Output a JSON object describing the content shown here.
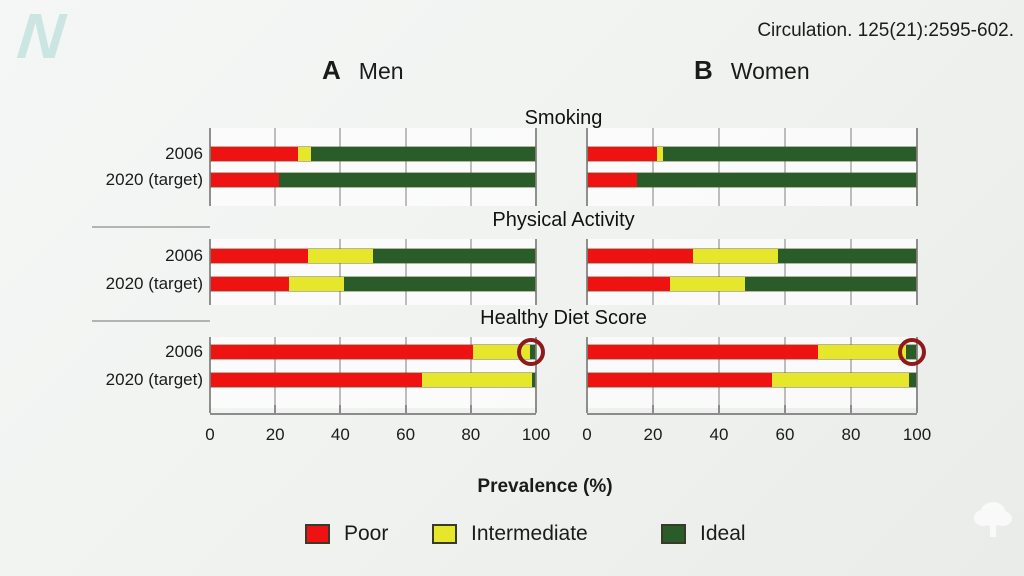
{
  "logo": {
    "letter": "N"
  },
  "citation": "Circulation. 125(21):2595-602.",
  "headers": {
    "a_letter": "A",
    "a_name": "Men",
    "b_letter": "B",
    "b_name": "Women"
  },
  "xlabel": "Prevalence (%)",
  "legend": {
    "items": [
      {
        "label": "Poor",
        "color": "#ee1212"
      },
      {
        "label": "Intermediate",
        "color": "#e6e72b"
      },
      {
        "label": "Ideal",
        "color": "#2a5c2a"
      }
    ]
  },
  "chart_data": {
    "type": "bar",
    "stacked": true,
    "orientation": "horizontal",
    "title": "",
    "xlabel": "Prevalence (%)",
    "xlim": [
      0,
      100
    ],
    "x_ticks": [
      0,
      20,
      40,
      60,
      80,
      100
    ],
    "panels": [
      {
        "key": "men",
        "label": "Men"
      },
      {
        "key": "women",
        "label": "Women"
      }
    ],
    "segments": [
      {
        "name": "Poor",
        "color": "#ee1212"
      },
      {
        "name": "Intermediate",
        "color": "#e6e72b"
      },
      {
        "name": "Ideal",
        "color": "#2a5c2a"
      }
    ],
    "row_labels": [
      "2006",
      "2020 (target)"
    ],
    "sections": [
      {
        "title": "Smoking",
        "men": [
          [
            27,
            4,
            69
          ],
          [
            21,
            0,
            79
          ]
        ],
        "women": [
          [
            21,
            2,
            77
          ],
          [
            15,
            0,
            85
          ]
        ]
      },
      {
        "title": "Physical Activity",
        "men": [
          [
            30,
            20,
            50
          ],
          [
            24,
            17,
            59
          ]
        ],
        "women": [
          [
            32,
            26,
            42
          ],
          [
            25,
            23,
            52
          ]
        ]
      },
      {
        "title": "Healthy Diet Score",
        "men": [
          [
            81,
            17.5,
            1.5
          ],
          [
            65,
            34,
            1
          ]
        ],
        "women": [
          [
            70,
            27,
            3
          ],
          [
            56,
            42,
            2
          ]
        ]
      }
    ],
    "annotations": [
      {
        "shape": "circle",
        "color": "#8e1b1b",
        "panel": "men",
        "section": "Healthy Diet Score",
        "row": "2006",
        "note": "highlights tiny ideal segment"
      },
      {
        "shape": "circle",
        "color": "#8e1b1b",
        "panel": "women",
        "section": "Healthy Diet Score",
        "row": "2006",
        "note": "highlights tiny ideal segment"
      }
    ]
  }
}
